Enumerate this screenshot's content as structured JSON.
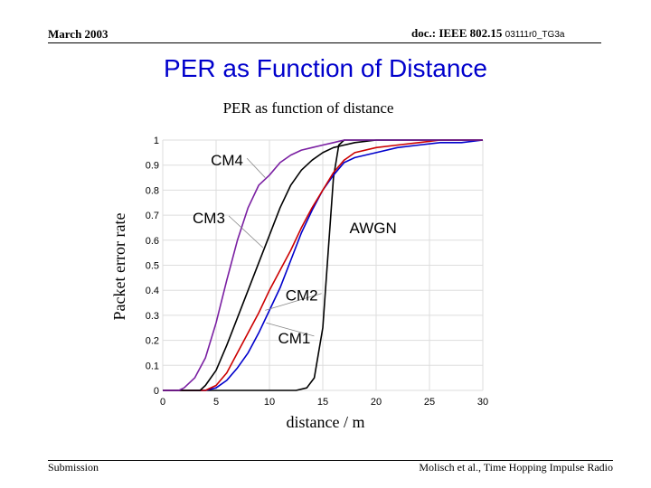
{
  "header": {
    "date": "March 2003",
    "doc_prefix": "doc.: IEEE 802.15 ",
    "doc_number": "03111r0_TG3a"
  },
  "slide_title": "PER as Function of Distance",
  "footer": {
    "left": "Submission",
    "right": "Molisch et al., Time Hopping Impulse Radio"
  },
  "chart_data": {
    "type": "line",
    "title": "PER as function of distance",
    "xlabel": "distance / m",
    "ylabel": "Packet error rate",
    "xlim": [
      0,
      30
    ],
    "ylim": [
      0,
      1
    ],
    "xticks": [
      0,
      5,
      10,
      15,
      20,
      25,
      30
    ],
    "yticks": [
      0,
      0.1,
      0.2,
      0.3,
      0.4,
      0.5,
      0.6,
      0.7,
      0.8,
      0.9,
      1
    ],
    "grid": true,
    "series": [
      {
        "name": "AWGN",
        "color": "#000000",
        "x": [
          0,
          12.5,
          13.5,
          14.2,
          15,
          15.5,
          16,
          16.5,
          17,
          30
        ],
        "y": [
          0,
          0,
          0.01,
          0.05,
          0.25,
          0.55,
          0.85,
          0.98,
          1,
          1
        ]
      },
      {
        "name": "CM1",
        "color": "#0000cc",
        "x": [
          0,
          4,
          5,
          6,
          7,
          8,
          9,
          10,
          11,
          12,
          13,
          14,
          15,
          16,
          17,
          18,
          20,
          22,
          24,
          26,
          28,
          30
        ],
        "y": [
          0,
          0,
          0.01,
          0.04,
          0.09,
          0.15,
          0.23,
          0.32,
          0.41,
          0.52,
          0.63,
          0.72,
          0.8,
          0.86,
          0.91,
          0.93,
          0.95,
          0.97,
          0.98,
          0.99,
          0.99,
          1
        ]
      },
      {
        "name": "CM2",
        "color": "#cc0000",
        "x": [
          0,
          4,
          5,
          6,
          7,
          8,
          9,
          10,
          11,
          12,
          13,
          14,
          15,
          16,
          17,
          18,
          20,
          22,
          24,
          26,
          28,
          30
        ],
        "y": [
          0,
          0,
          0.02,
          0.07,
          0.15,
          0.23,
          0.31,
          0.4,
          0.48,
          0.56,
          0.65,
          0.73,
          0.8,
          0.87,
          0.92,
          0.95,
          0.97,
          0.98,
          0.99,
          1,
          1,
          1
        ]
      },
      {
        "name": "CM3",
        "color": "#000000",
        "x": [
          0,
          3.5,
          4,
          5,
          6,
          7,
          8,
          9,
          10,
          11,
          12,
          13,
          14,
          15,
          16,
          17,
          18,
          20,
          22,
          24,
          26,
          30
        ],
        "y": [
          0,
          0,
          0.02,
          0.08,
          0.18,
          0.29,
          0.4,
          0.51,
          0.62,
          0.73,
          0.82,
          0.88,
          0.92,
          0.95,
          0.97,
          0.98,
          0.99,
          1,
          1,
          1,
          1,
          1
        ]
      },
      {
        "name": "CM4",
        "color": "#7a1fa2",
        "x": [
          0,
          1.5,
          2,
          3,
          4,
          5,
          6,
          7,
          8,
          9,
          10,
          11,
          12,
          13,
          14,
          15,
          16,
          17,
          18,
          20,
          22,
          30
        ],
        "y": [
          0,
          0,
          0.01,
          0.05,
          0.13,
          0.27,
          0.44,
          0.6,
          0.73,
          0.82,
          0.86,
          0.91,
          0.94,
          0.96,
          0.97,
          0.98,
          0.99,
          1,
          1,
          1,
          1,
          1
        ]
      }
    ],
    "annotations": [
      {
        "text": "CM4",
        "x": 4.5,
        "y": 0.92,
        "arrow_to": [
          9.6,
          0.85
        ]
      },
      {
        "text": "CM3",
        "x": 2.8,
        "y": 0.69,
        "arrow_to": [
          9.4,
          0.57
        ]
      },
      {
        "text": "AWGN",
        "x": 17.5,
        "y": 0.65
      },
      {
        "text": "CM2",
        "x": 11.5,
        "y": 0.38,
        "arrow_to": [
          9.6,
          0.32
        ]
      },
      {
        "text": "CM1",
        "x": 10.8,
        "y": 0.21,
        "arrow_to": [
          9.7,
          0.27
        ]
      }
    ]
  }
}
